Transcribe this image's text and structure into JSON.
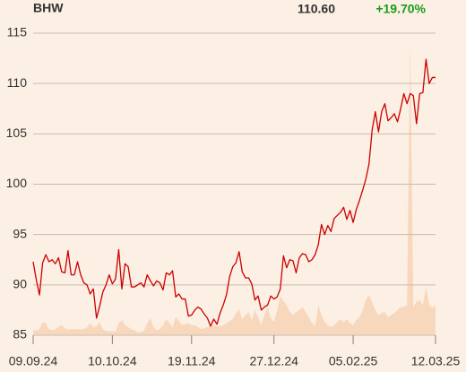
{
  "chart_data": {
    "type": "line",
    "ticker": "BHW",
    "last_price": "110.60",
    "change": "+19.70%",
    "change_color": "#1a9c1a",
    "ylim": [
      85,
      115
    ],
    "yticks": [
      85,
      90,
      95,
      100,
      105,
      110,
      115
    ],
    "grid": true,
    "categories": [
      "09.09.24",
      null,
      null,
      null,
      null,
      null,
      null,
      null,
      null,
      null,
      null,
      null,
      null,
      null,
      null,
      null,
      null,
      null,
      null,
      null,
      null,
      null,
      null,
      null,
      null,
      "10.10.24",
      null,
      null,
      null,
      null,
      null,
      null,
      null,
      null,
      null,
      null,
      null,
      null,
      null,
      null,
      null,
      null,
      null,
      null,
      null,
      null,
      null,
      null,
      null,
      null,
      "19.11.24",
      null,
      null,
      null,
      null,
      null,
      null,
      null,
      null,
      null,
      null,
      null,
      null,
      null,
      null,
      null,
      null,
      null,
      null,
      null,
      null,
      null,
      null,
      null,
      null,
      null,
      "27.12.24",
      null,
      null,
      null,
      null,
      null,
      null,
      null,
      null,
      null,
      null,
      null,
      null,
      null,
      null,
      null,
      null,
      null,
      null,
      null,
      null,
      null,
      null,
      null,
      null,
      "05.02.25",
      null,
      null,
      null,
      null,
      null,
      null,
      null,
      null,
      null,
      null,
      null,
      null,
      null,
      null,
      null,
      null,
      null,
      null,
      null,
      null,
      null,
      null,
      null,
      null,
      null,
      "12.03.25"
    ],
    "series": [
      {
        "color": "#cc0000",
        "values": [
          92.3,
          90.5,
          89.0,
          92.2,
          93.0,
          92.3,
          92.5,
          92.1,
          92.7,
          91.3,
          91.2,
          93.4,
          91.0,
          91.0,
          92.3,
          91.0,
          90.2,
          90.0,
          89.1,
          89.6,
          86.7,
          87.9,
          89.3,
          90.0,
          91.0,
          90.1,
          90.6,
          93.5,
          89.6,
          92.1,
          91.8,
          89.8,
          89.8,
          90.0,
          90.2,
          89.8,
          91.0,
          90.4,
          89.9,
          90.4,
          90.2,
          89.5,
          91.2,
          91.0,
          91.4,
          88.8,
          89.1,
          88.6,
          88.6,
          86.9,
          87.0,
          87.5,
          87.8,
          87.6,
          87.1,
          86.7,
          85.9,
          86.6,
          86.1,
          87.2,
          88.0,
          89.0,
          90.8,
          91.8,
          92.2,
          93.3,
          91.3,
          90.7,
          90.7,
          90.1,
          88.5,
          88.9,
          87.5,
          87.8,
          88.0,
          88.9,
          88.6,
          88.8,
          89.6,
          92.9,
          91.7,
          92.5,
          92.4,
          91.2,
          92.7,
          93.1,
          93.0,
          92.3,
          92.5,
          93.0,
          94.0,
          96.0,
          95.0,
          95.9,
          95.3,
          96.6,
          96.9,
          97.2,
          97.7,
          96.5,
          97.4,
          96.2,
          97.5,
          98.4,
          99.4,
          100.5,
          102.0,
          105.4,
          107.2,
          105.2,
          107.2,
          108.0,
          106.3,
          106.6,
          107.0,
          106.2,
          107.5,
          109.0,
          108.0,
          109.0,
          108.8,
          106.0,
          109.0,
          109.1,
          112.4,
          110.0,
          110.6,
          110.6
        ]
      },
      {
        "type": "area",
        "color": "#f8d8bd",
        "values": [
          85.5,
          85.5,
          85.6,
          86.3,
          86.2,
          85.6,
          85.5,
          85.6,
          85.8,
          86.0,
          85.7,
          85.6,
          85.6,
          85.6,
          85.6,
          85.6,
          85.6,
          85.8,
          86.2,
          85.8,
          85.9,
          86.3,
          85.6,
          85.4,
          85.4,
          85.4,
          85.4,
          86.2,
          86.5,
          86.0,
          85.8,
          85.6,
          85.5,
          85.3,
          85.3,
          85.5,
          86.2,
          86.7,
          85.8,
          85.5,
          85.6,
          86.0,
          86.6,
          86.2,
          85.8,
          86.8,
          86.4,
          86.0,
          86.1,
          86.2,
          86.0,
          86.0,
          85.8,
          85.6,
          85.7,
          85.8,
          85.9,
          86.0,
          85.9,
          85.9,
          86.0,
          86.2,
          86.4,
          86.6,
          87.2,
          87.6,
          86.6,
          87.0,
          87.3,
          86.5,
          87.5,
          86.8,
          86.0,
          87.0,
          87.8,
          86.7,
          86.3,
          87.5,
          88.9,
          88.4,
          88.0,
          87.3,
          87.0,
          87.3,
          87.5,
          87.8,
          87.3,
          86.8,
          86.2,
          85.9,
          88.0,
          87.0,
          86.3,
          86.0,
          85.8,
          86.0,
          86.3,
          86.6,
          86.3,
          86.6,
          86.2,
          86.0,
          86.5,
          86.8,
          87.5,
          88.5,
          89.0,
          88.3,
          87.5,
          87.0,
          87.2,
          87.3,
          86.8,
          87.0,
          87.2,
          87.5,
          87.8,
          87.8,
          88.0,
          114.1,
          87.8,
          88.3,
          88.5,
          88.0,
          89.8,
          88.0,
          87.7,
          88.0
        ]
      }
    ]
  }
}
